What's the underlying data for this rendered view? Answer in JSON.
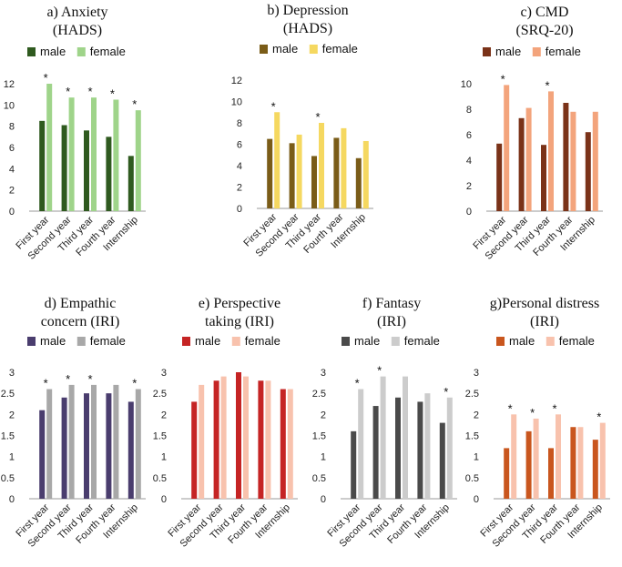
{
  "chart_data": [
    {
      "type": "bar",
      "title_lines": [
        "a) Anxiety",
        "(HADS)"
      ],
      "categories": [
        "First year",
        "Second year",
        "Third year",
        "Fourth year",
        "Internship"
      ],
      "series": [
        {
          "name": "male",
          "color": "#2f5a1f",
          "values": [
            8.5,
            8.1,
            7.6,
            7.0,
            5.2
          ]
        },
        {
          "name": "female",
          "color": "#9fd48a",
          "values": [
            12.0,
            10.7,
            10.7,
            10.5,
            9.5
          ]
        }
      ],
      "yticks": [
        "0",
        "2",
        "4",
        "6",
        "8",
        "10",
        "12"
      ],
      "ylim": [
        0,
        12
      ],
      "significant": [
        true,
        true,
        true,
        true,
        true
      ]
    },
    {
      "type": "bar",
      "title_lines": [
        "b) Depression",
        "(HADS)"
      ],
      "categories": [
        "First year",
        "Second year",
        "Third year",
        "Fourth year",
        "Internship"
      ],
      "series": [
        {
          "name": "male",
          "color": "#7a5c18",
          "values": [
            6.5,
            6.1,
            4.9,
            6.6,
            4.7
          ]
        },
        {
          "name": "female",
          "color": "#f5d860",
          "values": [
            9.0,
            6.9,
            8.0,
            7.5,
            6.3
          ]
        }
      ],
      "yticks": [
        "0",
        "2",
        "4",
        "6",
        "8",
        "10",
        "12"
      ],
      "ylim": [
        0,
        12
      ],
      "significant": [
        true,
        false,
        true,
        false,
        false
      ]
    },
    {
      "type": "bar",
      "title_lines": [
        "c) CMD",
        "(SRQ-20)"
      ],
      "categories": [
        "First year",
        "Second year",
        "Third year",
        "Fourth year",
        "Internship"
      ],
      "series": [
        {
          "name": "male",
          "color": "#7a3218",
          "values": [
            5.3,
            7.3,
            5.2,
            8.5,
            6.2
          ]
        },
        {
          "name": "female",
          "color": "#f3a47c",
          "values": [
            9.9,
            8.1,
            9.4,
            7.8,
            7.8
          ]
        }
      ],
      "yticks": [
        "0",
        "2",
        "4",
        "6",
        "8",
        "10"
      ],
      "ylim": [
        0,
        10
      ],
      "significant": [
        true,
        false,
        true,
        false,
        false
      ]
    },
    {
      "type": "bar",
      "title_lines": [
        "d) Empathic",
        "concern (IRI)"
      ],
      "categories": [
        "First year",
        "Second year",
        "Third year",
        "Fourth year",
        "Internship"
      ],
      "series": [
        {
          "name": "male",
          "color": "#4a3d6e",
          "values": [
            2.1,
            2.4,
            2.5,
            2.5,
            2.3
          ]
        },
        {
          "name": "female",
          "color": "#a8a8a8",
          "values": [
            2.6,
            2.7,
            2.7,
            2.7,
            2.6
          ]
        }
      ],
      "yticks": [
        "0",
        "0.5",
        "1",
        "1.5",
        "2",
        "2.5",
        "3"
      ],
      "ylim": [
        0,
        3
      ],
      "significant": [
        true,
        true,
        true,
        false,
        true
      ]
    },
    {
      "type": "bar",
      "title_lines": [
        "e) Perspective",
        "taking (IRI)"
      ],
      "categories": [
        "First year",
        "Second year",
        "Third year",
        "Fourth year",
        "Internship"
      ],
      "series": [
        {
          "name": "male",
          "color": "#c52424",
          "values": [
            2.3,
            2.8,
            3.0,
            2.8,
            2.6
          ]
        },
        {
          "name": "female",
          "color": "#f8c2ad",
          "values": [
            2.7,
            2.9,
            2.9,
            2.8,
            2.6
          ]
        }
      ],
      "yticks": [
        "0",
        "0.5",
        "1",
        "1.5",
        "2",
        "2.5",
        "3"
      ],
      "ylim": [
        0,
        3
      ],
      "significant": [
        false,
        false,
        false,
        false,
        false
      ]
    },
    {
      "type": "bar",
      "title_lines": [
        "f) Fantasy",
        "(IRI)"
      ],
      "categories": [
        "First year",
        "Second year",
        "Third year",
        "Fourth year",
        "Internship"
      ],
      "series": [
        {
          "name": "male",
          "color": "#4a4a4a",
          "values": [
            1.6,
            2.2,
            2.4,
            2.3,
            1.8
          ]
        },
        {
          "name": "female",
          "color": "#cccccc",
          "values": [
            2.6,
            2.9,
            2.9,
            2.5,
            2.4
          ]
        }
      ],
      "yticks": [
        "0",
        "0.5",
        "1",
        "1.5",
        "2",
        "2.5",
        "3"
      ],
      "ylim": [
        0,
        3
      ],
      "significant": [
        true,
        true,
        false,
        false,
        true
      ]
    },
    {
      "type": "bar",
      "title_lines": [
        "g)Personal distress",
        "(IRI)"
      ],
      "categories": [
        "First year",
        "Second year",
        "Third year",
        "Fourth year",
        "Internship"
      ],
      "series": [
        {
          "name": "male",
          "color": "#c9561e",
          "values": [
            1.2,
            1.6,
            1.2,
            1.7,
            1.4
          ]
        },
        {
          "name": "female",
          "color": "#f8c2ad",
          "values": [
            2.0,
            1.9,
            2.0,
            1.7,
            1.8
          ]
        }
      ],
      "yticks": [
        "0",
        "0.5",
        "1",
        "1.5",
        "2",
        "2.5",
        "3"
      ],
      "ylim": [
        0,
        3
      ],
      "significant": [
        true,
        true,
        true,
        false,
        true
      ]
    }
  ]
}
